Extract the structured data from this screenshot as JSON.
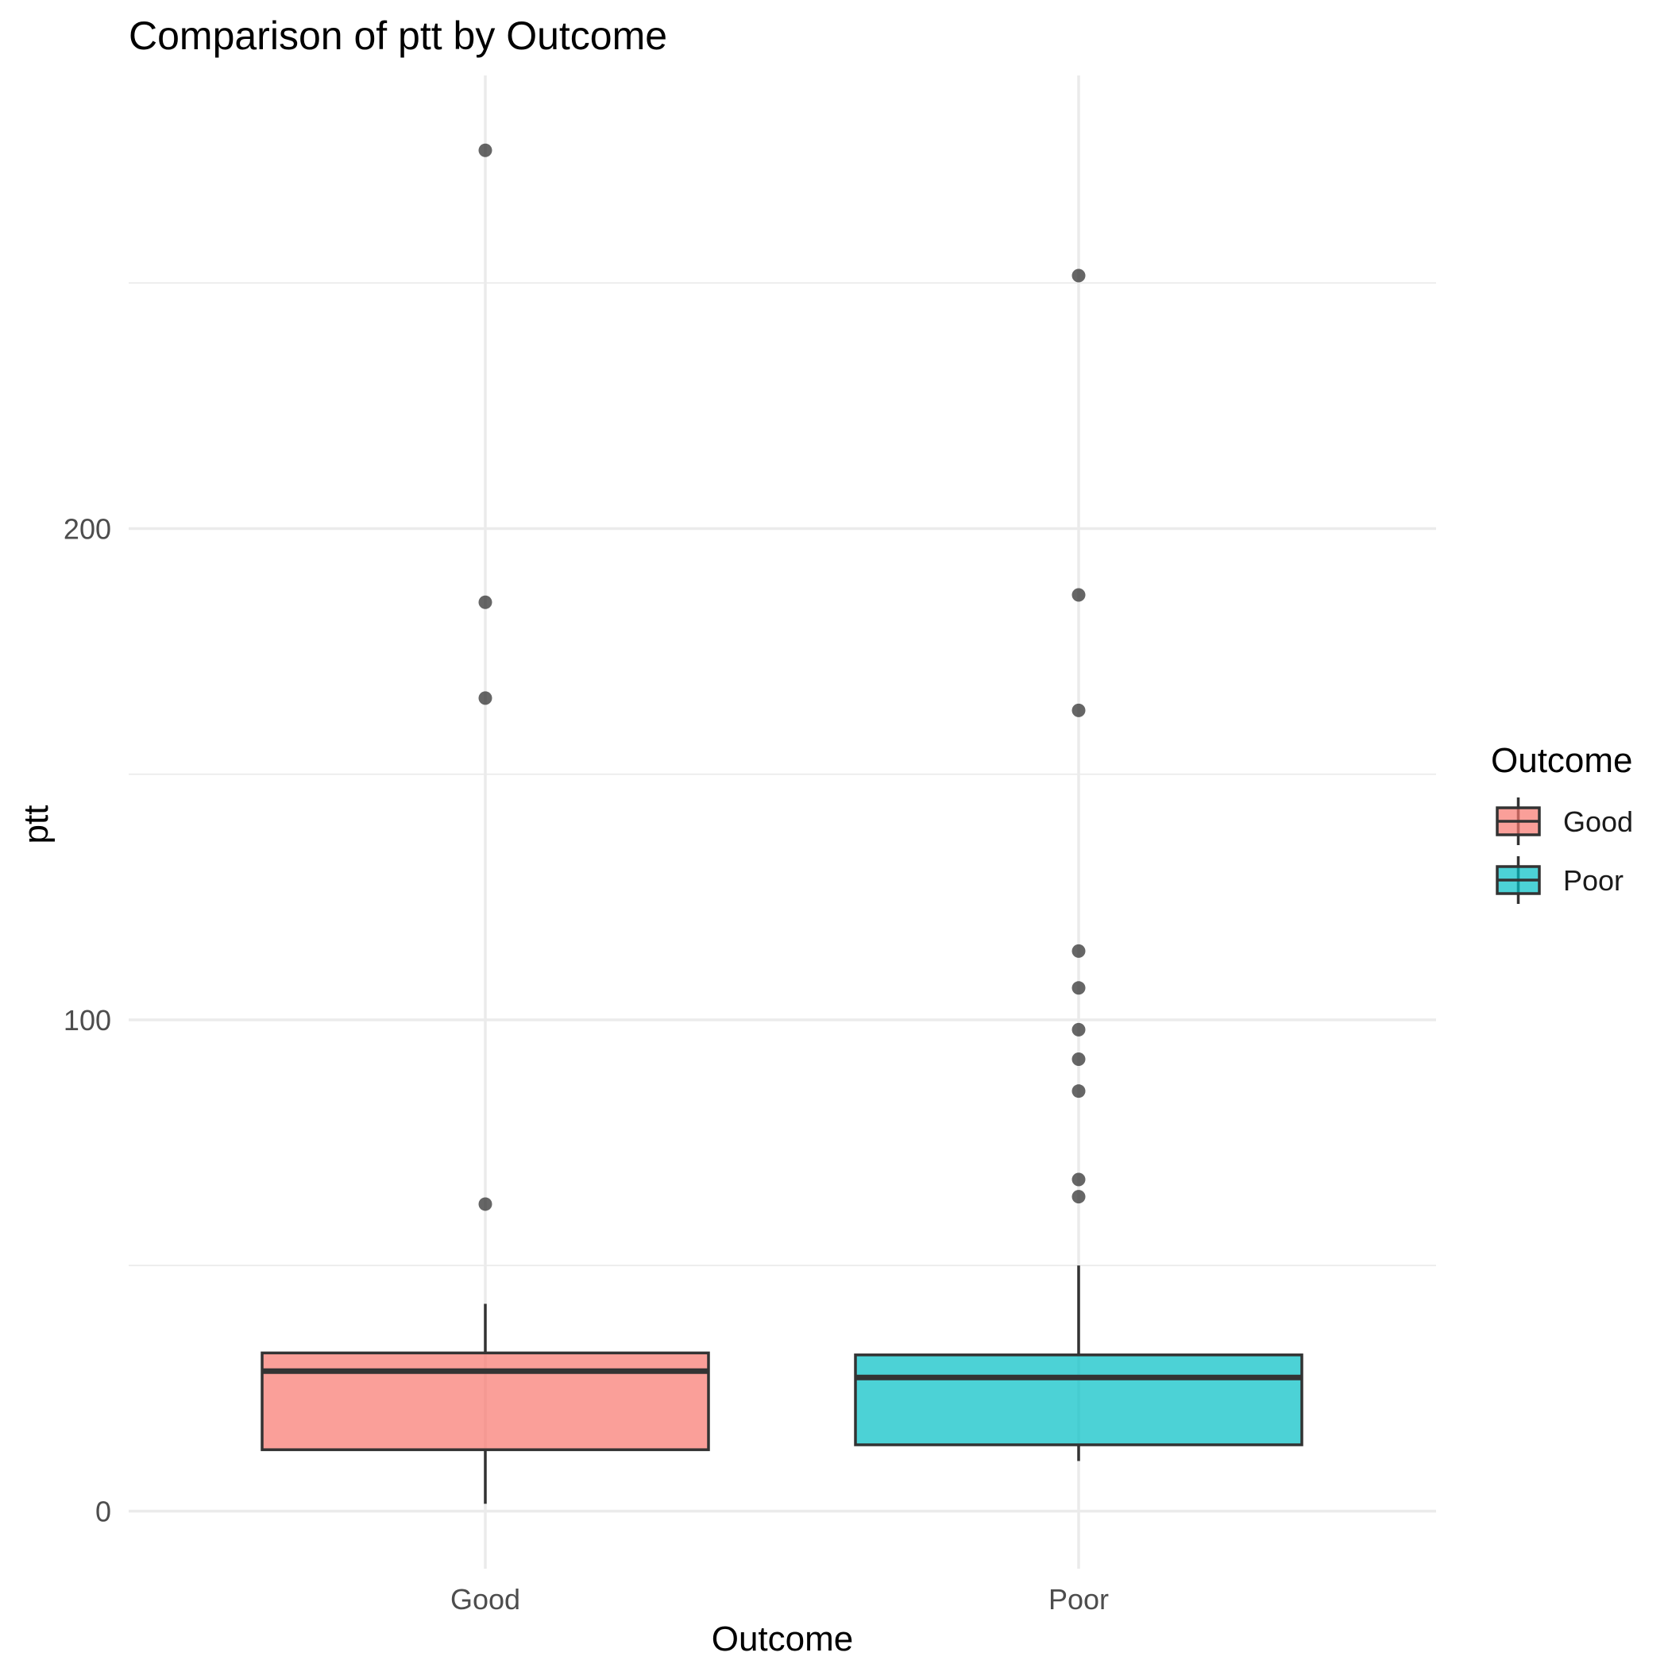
{
  "chart_data": {
    "type": "boxplot",
    "title": "Comparison of ptt by Outcome",
    "xlabel": "Outcome",
    "ylabel": "ptt",
    "categories": [
      "Good",
      "Poor"
    ],
    "ylim": [
      -11,
      263
    ],
    "yticks": [
      0,
      100,
      200
    ],
    "ytick_labels": [
      "0",
      "100",
      "200"
    ],
    "y_minor_gridlines": [
      50,
      150,
      250
    ],
    "grid": true,
    "legend": {
      "title": "Outcome",
      "position": "right",
      "entries": [
        "Good",
        "Poor"
      ]
    },
    "series": [
      {
        "name": "Good",
        "color": "#F8766D",
        "whisker_low": 1.5,
        "q1": 12.5,
        "median": 28.5,
        "q3": 32.2,
        "whisker_high": 42.2,
        "outliers": [
          62.5,
          165.5,
          185,
          277
        ]
      },
      {
        "name": "Poor",
        "color": "#00BFC4",
        "whisker_low": 10.2,
        "q1": 13.5,
        "median": 27.2,
        "q3": 31.8,
        "whisker_high": 50,
        "outliers": [
          64,
          67.5,
          85.5,
          92,
          98,
          106.5,
          114,
          163,
          186.5,
          251.5
        ]
      }
    ]
  }
}
